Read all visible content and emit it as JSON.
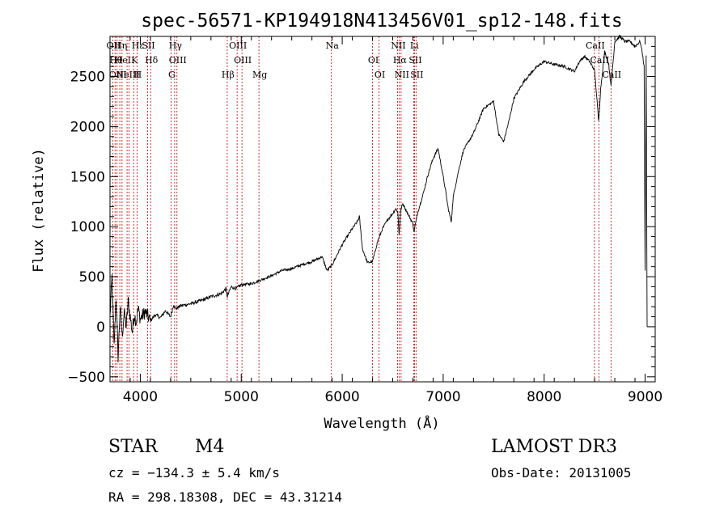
{
  "chart_data": {
    "type": "line",
    "title": "spec-56571-KP194918N413456V01_sp12-148.fits",
    "xlabel": "Wavelength (Å)",
    "ylabel": "Flux (relative)",
    "xlim": [
      3700,
      9100
    ],
    "ylim": [
      -550,
      2900
    ],
    "xticks": [
      4000,
      5000,
      6000,
      7000,
      8000,
      9000
    ],
    "yticks": [
      -500,
      0,
      500,
      1000,
      1500,
      2000,
      2500
    ],
    "line_color": "#000000",
    "marker_color": "#c00000",
    "series": [
      {
        "name": "flux",
        "x": [
          3700,
          3720,
          3740,
          3760,
          3780,
          3800,
          3820,
          3840,
          3860,
          3880,
          3900,
          3920,
          3940,
          3960,
          3980,
          4000,
          4050,
          4100,
          4150,
          4200,
          4250,
          4300,
          4330,
          4350,
          4400,
          4500,
          4600,
          4700,
          4800,
          4850,
          4862,
          4880,
          4900,
          4950,
          5000,
          5100,
          5200,
          5300,
          5400,
          5500,
          5600,
          5700,
          5800,
          5850,
          5900,
          6000,
          6050,
          6100,
          6150,
          6170,
          6200,
          6250,
          6300,
          6350,
          6400,
          6450,
          6500,
          6530,
          6550,
          6563,
          6580,
          6600,
          6650,
          6700,
          6710,
          6750,
          6800,
          6850,
          6900,
          6950,
          7000,
          7020,
          7050,
          7080,
          7100,
          7120,
          7150,
          7200,
          7300,
          7400,
          7500,
          7550,
          7600,
          7650,
          7700,
          7800,
          7900,
          8000,
          8100,
          8200,
          8300,
          8350,
          8400,
          8450,
          8500,
          8540,
          8560,
          8600,
          8640,
          8662,
          8700,
          8750,
          8800,
          8850,
          8900,
          8950,
          8970,
          8990,
          9000,
          9010,
          9020
        ],
        "y": [
          100,
          500,
          -200,
          300,
          -300,
          200,
          -100,
          150,
          0,
          250,
          100,
          -50,
          120,
          50,
          180,
          80,
          150,
          60,
          120,
          90,
          160,
          100,
          220,
          180,
          210,
          230,
          260,
          300,
          330,
          380,
          300,
          350,
          400,
          380,
          420,
          430,
          470,
          510,
          560,
          580,
          620,
          650,
          700,
          560,
          620,
          820,
          900,
          980,
          1050,
          1100,
          780,
          640,
          650,
          850,
          980,
          1070,
          1130,
          1180,
          1150,
          920,
          1170,
          1230,
          1130,
          1030,
          950,
          1150,
          1320,
          1520,
          1680,
          1780,
          1500,
          1380,
          1180,
          1050,
          1300,
          1400,
          1550,
          1760,
          1930,
          2180,
          2250,
          1920,
          1850,
          2050,
          2280,
          2450,
          2570,
          2650,
          2620,
          2600,
          2550,
          2650,
          2700,
          2650,
          2560,
          2050,
          2380,
          2750,
          2620,
          2400,
          2850,
          2900,
          2850,
          2850,
          2800,
          2850,
          2750,
          2600,
          550,
          2700,
          0
        ]
      }
    ],
    "lines": [
      {
        "wavelength": 3727,
        "labels": [
          "OII"
        ]
      },
      {
        "wavelength": 3750,
        "labels": [
          "Hθ"
        ]
      },
      {
        "wavelength": 3770,
        "labels": [
          "OIII"
        ]
      },
      {
        "wavelength": 3797,
        "labels": [
          "Hη"
        ]
      },
      {
        "wavelength": 3819,
        "labels": [
          "HeI"
        ]
      },
      {
        "wavelength": 3869,
        "labels": [
          "NeIII"
        ]
      },
      {
        "wavelength": 3889,
        "labels": []
      },
      {
        "wavelength": 3934,
        "labels": [
          "K"
        ]
      },
      {
        "wavelength": 3968,
        "labels": [
          "H",
          "Hε"
        ]
      },
      {
        "wavelength": 4072,
        "labels": [
          "SII"
        ]
      },
      {
        "wavelength": 4102,
        "labels": [
          "Hδ"
        ]
      },
      {
        "wavelength": 4304,
        "labels": [
          "G"
        ]
      },
      {
        "wavelength": 4340,
        "labels": [
          "Hγ"
        ]
      },
      {
        "wavelength": 4363,
        "labels": [
          "OIII"
        ]
      },
      {
        "wavelength": 4861,
        "labels": [
          "Hβ"
        ]
      },
      {
        "wavelength": 4959,
        "labels": [
          "OIII"
        ]
      },
      {
        "wavelength": 5007,
        "labels": [
          "OIII"
        ]
      },
      {
        "wavelength": 5175,
        "labels": [
          "Mg"
        ]
      },
      {
        "wavelength": 5893,
        "labels": [
          "Na"
        ]
      },
      {
        "wavelength": 6300,
        "labels": [
          "OI"
        ]
      },
      {
        "wavelength": 6364,
        "labels": [
          "OI"
        ]
      },
      {
        "wavelength": 6548,
        "labels": [
          "NII"
        ]
      },
      {
        "wavelength": 6563,
        "labels": [
          "Hα"
        ]
      },
      {
        "wavelength": 6583,
        "labels": [
          "NII"
        ]
      },
      {
        "wavelength": 6707,
        "labels": [
          "Li"
        ]
      },
      {
        "wavelength": 6716,
        "labels": [
          "SII"
        ]
      },
      {
        "wavelength": 6731,
        "labels": [
          "SII"
        ]
      },
      {
        "wavelength": 8498,
        "labels": [
          "CaII"
        ]
      },
      {
        "wavelength": 8542,
        "labels": [
          "CaII"
        ]
      },
      {
        "wavelength": 8662,
        "labels": [
          "CaII"
        ]
      }
    ]
  },
  "info": {
    "class": "STAR",
    "subclass": "M4",
    "survey": "LAMOST DR3",
    "cz": "cz = −134.3 ± 5.4 km/s",
    "obs_date": "Obs-Date: 20131005",
    "coords": "RA = 298.18308, DEC =  43.31214"
  }
}
